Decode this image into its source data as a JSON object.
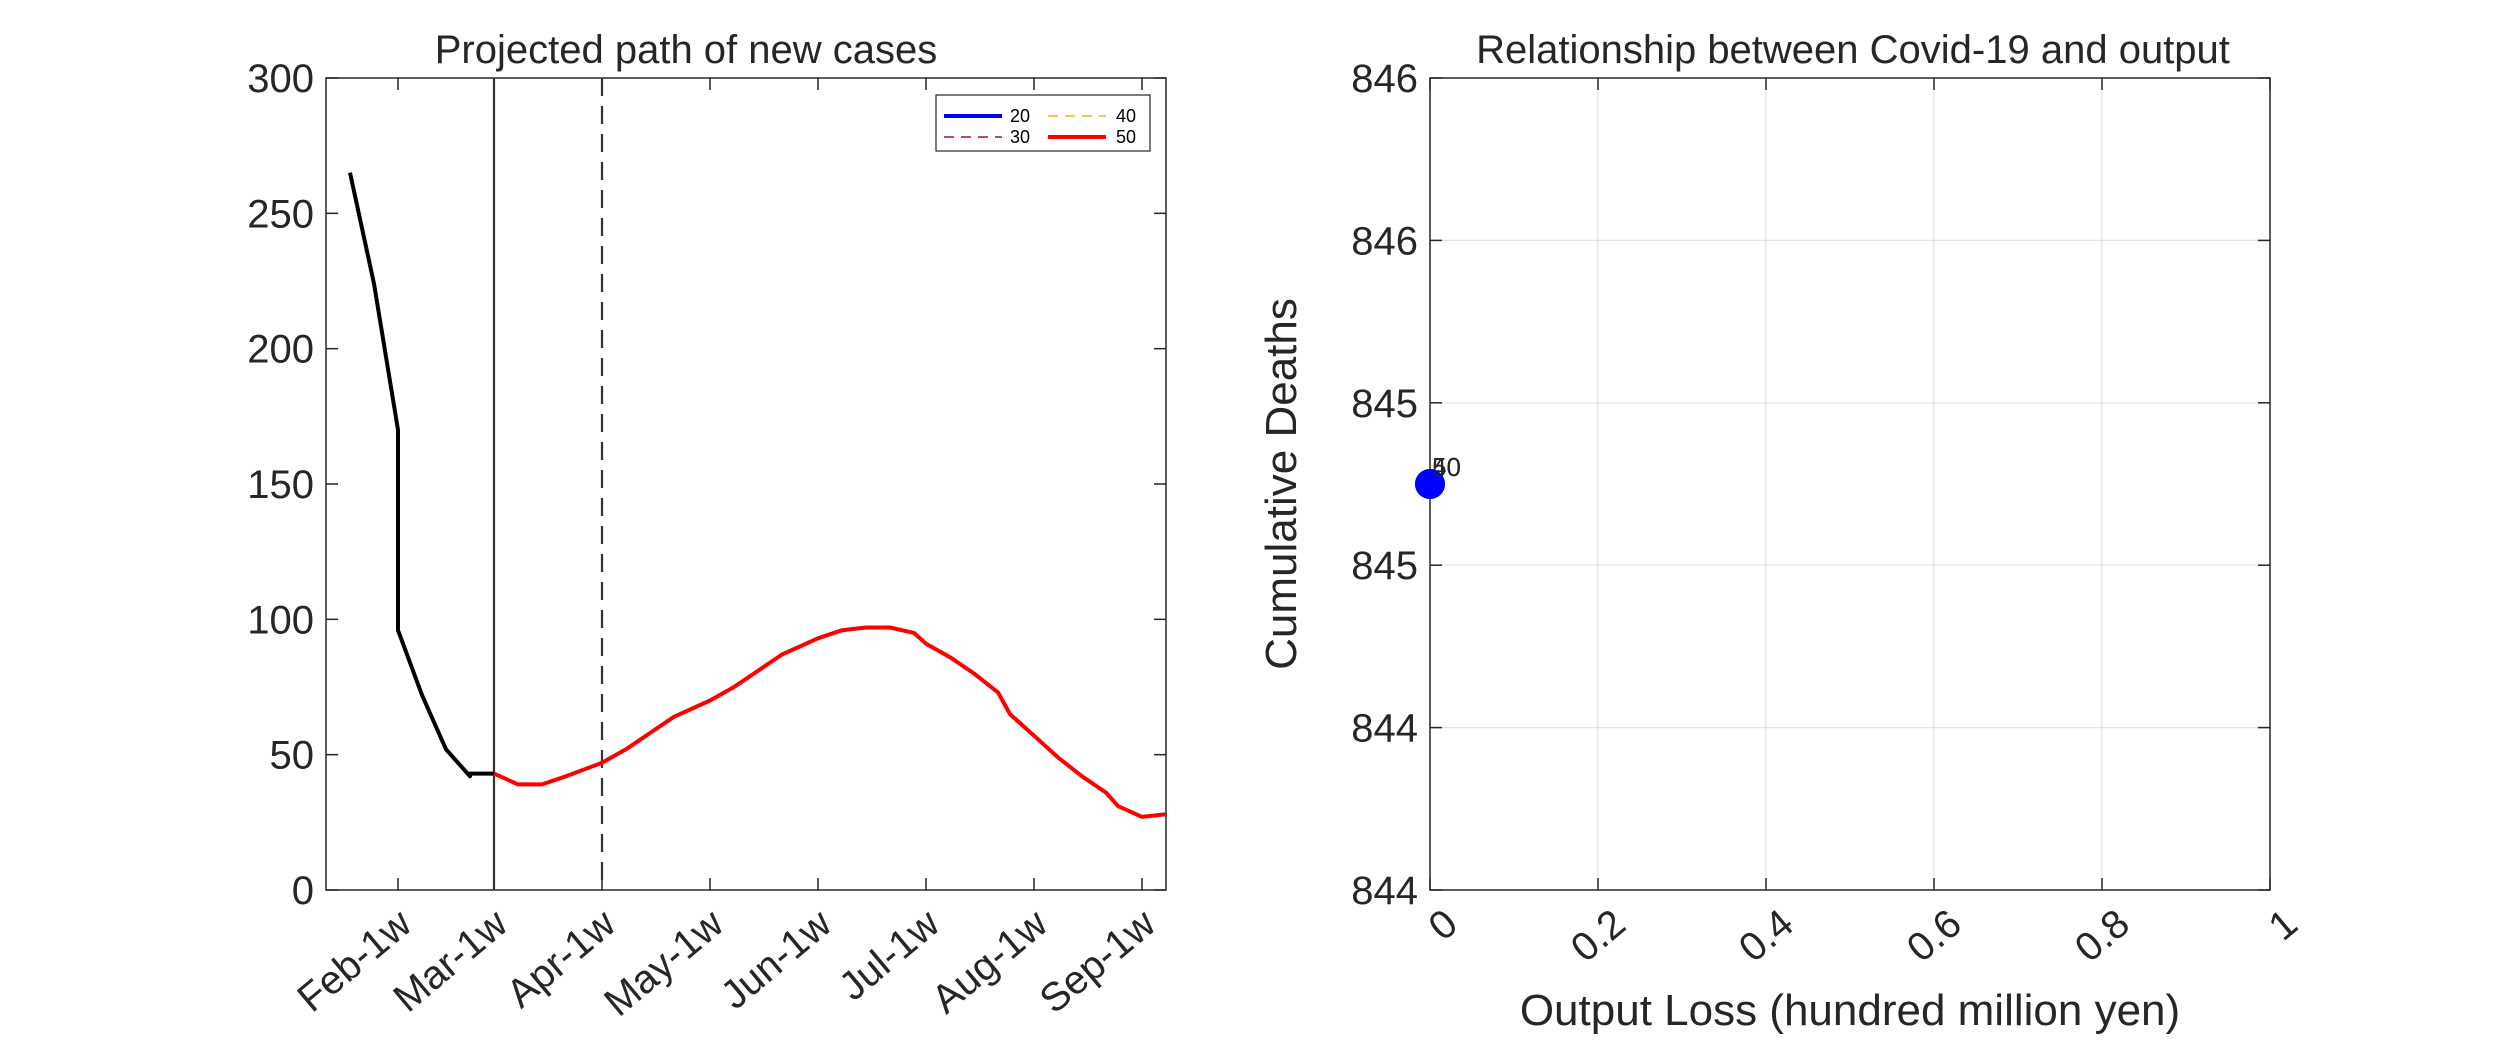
{
  "chart_data": [
    {
      "type": "line",
      "title": "Projected path of new cases",
      "xlabel": "",
      "ylabel": "",
      "categories": [
        "Feb-1w",
        "Mar-1w",
        "Apr-1w",
        "May-1w",
        "Jun-1w",
        "Jul-1w",
        "Aug-1w",
        "Sep-1w"
      ],
      "ylim": [
        0,
        300
      ],
      "yticks": [
        0,
        50,
        100,
        150,
        200,
        250,
        300
      ],
      "grid": false,
      "legend_placement": "top-right",
      "vlines": [
        {
          "x": "Mar-1w",
          "style": "solid"
        },
        {
          "x": "Apr-1w",
          "style": "dashed"
        }
      ],
      "series": [
        {
          "name": "",
          "color": "#000000",
          "x": [
            "Jan-2w",
            "Jan-3w",
            "Jan-4w",
            "Feb-1w",
            "Feb-2w",
            "Feb-3w",
            "Feb-4w",
            "Mar-0w",
            "Mar-1w"
          ],
          "values": [
            265,
            224,
            170,
            96,
            72,
            52,
            42,
            43,
            43
          ]
        },
        {
          "name": "50",
          "color": "#ff0000",
          "x": [
            "Mar-1w",
            "Mar-2w",
            "Mar-3w",
            "Mar-4w",
            "Apr-1w",
            "Apr-2w",
            "Apr-3w",
            "Apr-4w",
            "May-1w",
            "May-2w",
            "May-3w",
            "May-4w",
            "Jun-1w",
            "Jun-2w",
            "Jun-3w",
            "Jun-4w",
            "Jun-5w",
            "Jul-1w",
            "Jul-2w",
            "Jul-3w",
            "Jul-4w",
            "Aug-0w",
            "Aug-1w",
            "Aug-2w",
            "Aug-3w",
            "Aug-4w",
            "Sep-0w",
            "Sep-1w",
            "Sep-2w"
          ],
          "values": [
            43,
            39,
            39,
            42,
            47,
            52,
            58,
            64,
            70,
            75,
            81,
            87,
            93,
            96,
            97,
            97,
            95,
            91,
            86,
            80,
            73,
            65,
            57,
            49,
            42,
            36,
            31,
            27,
            28
          ]
        }
      ],
      "legend": [
        {
          "label": "20",
          "color": "#0000ff",
          "style": "solid"
        },
        {
          "label": "30",
          "color": "#a2142f",
          "style": "dashed"
        },
        {
          "label": "40",
          "color": "#edb120",
          "style": "dashed"
        },
        {
          "label": "50",
          "color": "#ff0000",
          "style": "solid"
        }
      ]
    },
    {
      "type": "scatter",
      "title": "Relationship between Covid-19 and output",
      "xlabel": "Output Loss (hundred million yen)",
      "ylabel": "Cumulative Deaths",
      "xlim": [
        0,
        1
      ],
      "ylim": [
        844,
        846
      ],
      "xticks": [
        "0",
        "0.2",
        "0.4",
        "0.6",
        "0.8",
        "1"
      ],
      "yticks": [
        "846",
        "846",
        "845",
        "845",
        "844",
        "844"
      ],
      "grid": true,
      "points": [
        {
          "x": 0,
          "y": 845.0,
          "label": "40",
          "color": "#0000ff"
        },
        {
          "x": 0,
          "y": 845.0,
          "label": "50",
          "color": "#0000ff"
        }
      ]
    }
  ]
}
